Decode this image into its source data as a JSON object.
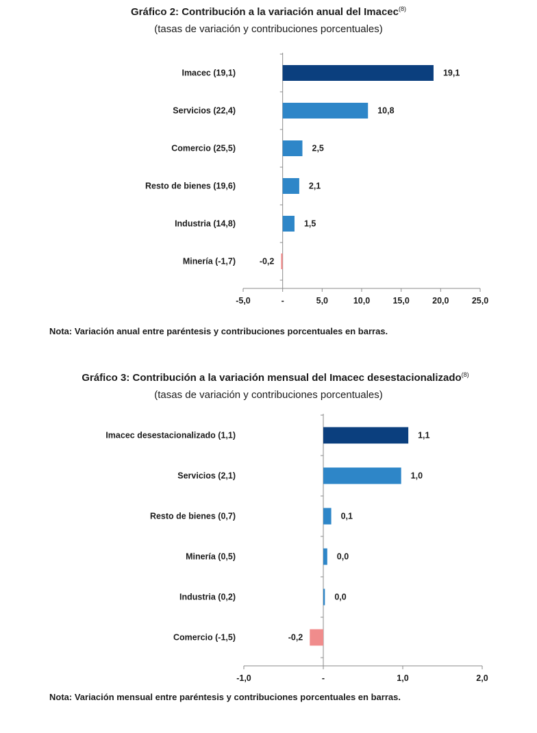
{
  "chart_data": [
    {
      "type": "bar",
      "orientation": "horizontal",
      "title": "Gráfico 2: Contribución a la variación anual del Imacec",
      "title_superscript": "(8)",
      "subtitle": "(tasas de variación y contribuciones porcentuales)",
      "categories": [
        "Imacec (19,1)",
        "Servicios (22,4)",
        "Comercio (25,5)",
        "Resto de bienes (19,6)",
        "Industria (14,8)",
        "Minería (-1,7)"
      ],
      "values": [
        19.1,
        10.8,
        2.5,
        2.1,
        1.5,
        -0.2
      ],
      "value_labels": [
        "19,1",
        "10,8",
        "2,5",
        "2,1",
        "1,5",
        "-0,2"
      ],
      "bar_colors": [
        "#0b3f7e",
        "#2e86c8",
        "#2e86c8",
        "#2e86c8",
        "#2e86c8",
        "#f08c8c"
      ],
      "xlim": [
        -5,
        25
      ],
      "ticks": [
        -5,
        0,
        5,
        10,
        15,
        20,
        25
      ],
      "tick_labels": [
        "-5,0",
        "-",
        "5,0",
        "10,0",
        "15,0",
        "20,0",
        "25,0"
      ],
      "note": "Nota: Variación anual entre paréntesis y contribuciones porcentuales en barras."
    },
    {
      "type": "bar",
      "orientation": "horizontal",
      "title": "Gráfico 3: Contribución a la variación mensual del Imacec desestacionalizado",
      "title_superscript": "(8)",
      "subtitle": "(tasas de variación y contribuciones porcentuales)",
      "categories": [
        "Imacec desestacionalizado (1,1)",
        "Servicios (2,1)",
        "Resto de bienes (0,7)",
        "Minería (0,5)",
        "Industria (0,2)",
        "Comercio (-1,5)"
      ],
      "values": [
        1.07,
        0.98,
        0.1,
        0.05,
        0.02,
        -0.17
      ],
      "value_labels": [
        "1,1",
        "1,0",
        "0,1",
        "0,0",
        "0,0",
        "-0,2"
      ],
      "bar_colors": [
        "#0b3f7e",
        "#2e86c8",
        "#2e86c8",
        "#2e86c8",
        "#2e86c8",
        "#f08c8c"
      ],
      "xlim": [
        -1,
        2
      ],
      "ticks": [
        -1,
        0,
        1,
        2
      ],
      "tick_labels": [
        "-1,0",
        "-",
        "1,0",
        "2,0"
      ],
      "note": "Nota: Variación mensual entre paréntesis y contribuciones porcentuales en barras."
    }
  ]
}
